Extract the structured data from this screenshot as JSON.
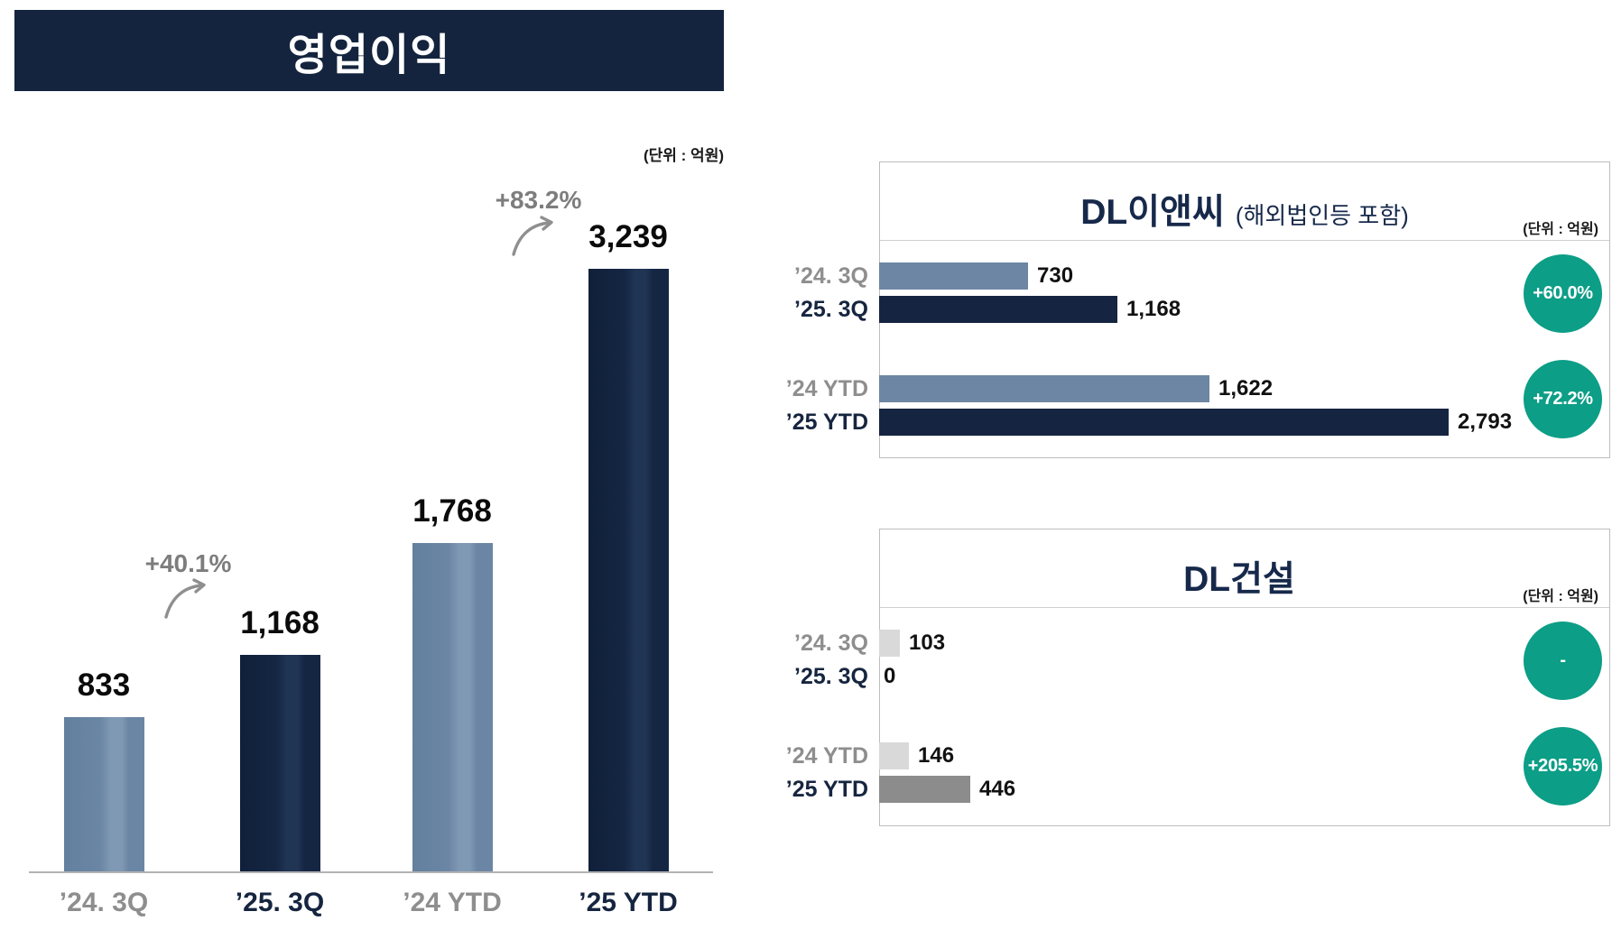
{
  "chart_data": [
    {
      "type": "bar",
      "title": "영업이익",
      "unit": "(단위 : 억원)",
      "categories": [
        "’24. 3Q",
        "’25. 3Q",
        "’24 YTD",
        "’25 YTD"
      ],
      "values": [
        833,
        1168,
        1768,
        3239
      ],
      "value_labels": [
        "833",
        "1,168",
        "1,768",
        "3,239"
      ],
      "bar_styles": [
        "slate",
        "navy",
        "slate",
        "navy"
      ],
      "label_styles": [
        "muted",
        "dark",
        "muted",
        "dark"
      ],
      "annotations": [
        "+40.1%",
        "+83.2%"
      ],
      "xlabel": "",
      "ylabel": "",
      "ylim": [
        0,
        3400
      ],
      "grid": false,
      "legend": false
    },
    {
      "type": "bar",
      "orientation": "horizontal",
      "title": "DL이앤씨",
      "subtitle": "(해외법인등 포함)",
      "unit": "(단위 : 억원)",
      "groups": [
        {
          "badge": "+60.0%",
          "rows": [
            {
              "label": "’24. 3Q",
              "value": 730,
              "display": "730",
              "style": "slate",
              "label_style": "muted"
            },
            {
              "label": "’25. 3Q",
              "value": 1168,
              "display": "1,168",
              "style": "navy",
              "label_style": "dark"
            }
          ]
        },
        {
          "badge": "+72.2%",
          "rows": [
            {
              "label": "’24 YTD",
              "value": 1622,
              "display": "1,622",
              "style": "slate",
              "label_style": "muted"
            },
            {
              "label": "’25 YTD",
              "value": 2793,
              "display": "2,793",
              "style": "navy",
              "label_style": "dark"
            }
          ]
        }
      ]
    },
    {
      "type": "bar",
      "orientation": "horizontal",
      "title": "DL건설",
      "subtitle": "",
      "unit": "(단위 : 억원)",
      "groups": [
        {
          "badge": "-",
          "rows": [
            {
              "label": "’24. 3Q",
              "value": 103,
              "display": "103",
              "style": "lightgray",
              "label_style": "muted"
            },
            {
              "label": "’25. 3Q",
              "value": 0,
              "display": "0",
              "style": "gray",
              "label_style": "dark"
            }
          ]
        },
        {
          "badge": "+205.5%",
          "rows": [
            {
              "label": "’24 YTD",
              "value": 146,
              "display": "146",
              "style": "lightgray",
              "label_style": "muted"
            },
            {
              "label": "’25 YTD",
              "value": 446,
              "display": "446",
              "style": "gray",
              "label_style": "dark"
            }
          ]
        }
      ]
    }
  ],
  "colors": {
    "header_bg": "#14243E",
    "navy_bar": "#152440",
    "slate_bar": "#6C86A4",
    "green_badge": "#0C9E86",
    "light_gray_bar": "#D9D9D9",
    "gray_bar": "#8C8C8C",
    "muted_label": "#8E8E8E"
  }
}
